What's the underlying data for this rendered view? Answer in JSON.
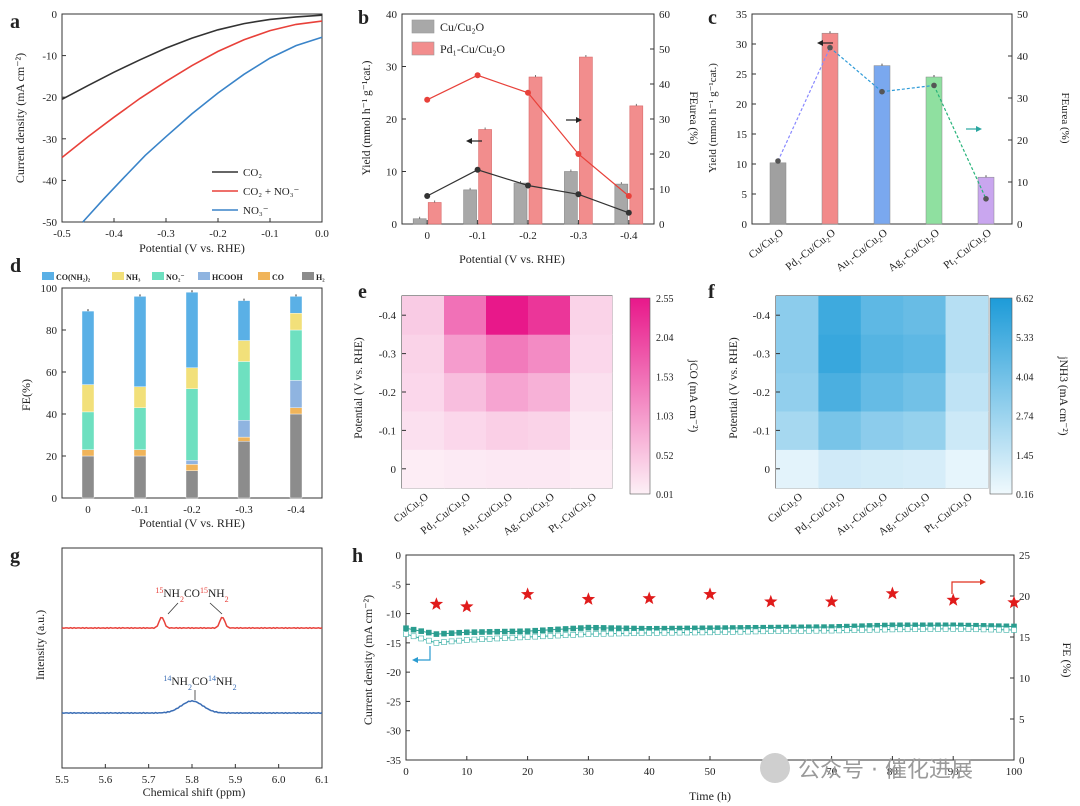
{
  "panels": {
    "a": {
      "label": "a",
      "chart_data": {
        "type": "line",
        "xlabel": "Potential (V vs. RHE)",
        "ylabel": "Current density (mA cm⁻²)",
        "xlim": [
          -0.5,
          0.0
        ],
        "ylim": [
          -50,
          0
        ],
        "xticks": [
          -0.5,
          -0.4,
          -0.3,
          -0.2,
          -0.1,
          0.0
        ],
        "xtick_labels": [
          "-0.5",
          "-0.4",
          "-0.3",
          "-0.2",
          "-0.1",
          "0.0"
        ],
        "yticks": [
          -50,
          -40,
          -30,
          -20,
          -10,
          0
        ],
        "series": [
          {
            "name": "CO₂",
            "color": "#333333",
            "x": [
              -0.5,
              -0.45,
              -0.4,
              -0.35,
              -0.3,
              -0.25,
              -0.2,
              -0.15,
              -0.1,
              -0.05,
              0.0
            ],
            "y": [
              -20.5,
              -17.2,
              -14.0,
              -11.0,
              -8.2,
              -5.8,
              -3.8,
              -2.3,
              -1.3,
              -0.7,
              -0.3
            ]
          },
          {
            "name": "CO₂ + NO₃⁻",
            "color": "#e8413a",
            "x": [
              -0.5,
              -0.45,
              -0.4,
              -0.35,
              -0.3,
              -0.25,
              -0.2,
              -0.15,
              -0.1,
              -0.05,
              0.0
            ],
            "y": [
              -34.5,
              -29.5,
              -24.8,
              -20.3,
              -16.2,
              -12.4,
              -9.0,
              -6.2,
              -4.0,
              -2.5,
              -1.7
            ]
          },
          {
            "name": "NO₃⁻",
            "color": "#3a84c9",
            "x": [
              -0.46,
              -0.42,
              -0.38,
              -0.34,
              -0.3,
              -0.25,
              -0.2,
              -0.15,
              -0.1,
              -0.05,
              0.0
            ],
            "y": [
              -50.0,
              -44.5,
              -39.2,
              -34.0,
              -29.5,
              -24.0,
              -19.0,
              -14.5,
              -10.6,
              -7.6,
              -5.6
            ]
          }
        ],
        "legend": "bottom-right"
      }
    },
    "b": {
      "label": "b",
      "chart_data": {
        "type": "bar",
        "xlabel": "Potential (V vs. RHE)",
        "ylabel": "Yield (mmol h⁻¹ g⁻¹cat.)",
        "y2label": "FEurea (%)",
        "categories": [
          "0",
          "-0.1",
          "-0.2",
          "-0.3",
          "-0.4"
        ],
        "ylim": [
          0,
          40
        ],
        "y2lim": [
          0,
          60
        ],
        "yticks": [
          0,
          10,
          20,
          30,
          40
        ],
        "y2ticks": [
          0,
          10,
          20,
          30,
          40,
          50,
          60
        ],
        "series": [
          {
            "name": "Cu/Cu₂O",
            "color": "#a8a8a8",
            "values": [
              1.0,
              6.5,
              7.8,
              10.0,
              7.6
            ]
          },
          {
            "name": "Pd₁-Cu/Cu₂O",
            "color": "#f28d8d",
            "values": [
              4.1,
              18.0,
              28.0,
              31.8,
              22.5
            ]
          }
        ],
        "line_series": [
          {
            "name": "Cu/Cu₂O FE",
            "color": "#333333",
            "axis": "right",
            "values": [
              8.0,
              15.5,
              11.0,
              8.5,
              3.2
            ]
          },
          {
            "name": "Pd₁-Cu/Cu₂O FE",
            "color": "#e8413a",
            "axis": "right",
            "values": [
              35.5,
              42.5,
              37.5,
              20.0,
              8.0
            ]
          }
        ],
        "legend": "top-left"
      }
    },
    "c": {
      "label": "c",
      "chart_data": {
        "type": "bar",
        "ylabel": "Yield (mmol h⁻¹ g⁻¹cat.)",
        "y2label": "FEurea (%)",
        "categories": [
          "Cu/Cu₂O",
          "Pd₁-Cu/Cu₂O",
          "Au₁-Cu/Cu₂O",
          "Ag₁-Cu/Cu₂O",
          "Pt₁-Cu/Cu₂O"
        ],
        "ylim": [
          0,
          35
        ],
        "y2lim": [
          0,
          50
        ],
        "yticks": [
          0,
          5,
          10,
          15,
          20,
          25,
          30,
          35
        ],
        "y2ticks": [
          0,
          10,
          20,
          30,
          40,
          50
        ],
        "values": [
          10.2,
          31.8,
          26.4,
          24.5,
          7.8
        ],
        "colors": [
          "#a0a0a0",
          "#f28a8a",
          "#7aa8ef",
          "#8fe0a0",
          "#c9a6ef"
        ],
        "fe_values": [
          15.0,
          42.0,
          31.5,
          33.0,
          6.0
        ]
      }
    },
    "d": {
      "label": "d",
      "chart_data": {
        "type": "bar",
        "stacked": true,
        "xlabel": "Potential (V vs. RHE)",
        "ylabel": "FE(%)",
        "categories": [
          "0",
          "-0.1",
          "-0.2",
          "-0.3",
          "-0.4"
        ],
        "ylim": [
          0,
          100
        ],
        "yticks": [
          0,
          20,
          40,
          60,
          80,
          100
        ],
        "series": [
          {
            "name": "H₂",
            "color": "#8c8c8c",
            "values": [
              20,
              20,
              13,
              27,
              40
            ]
          },
          {
            "name": "CO",
            "color": "#f0b45a",
            "values": [
              3,
              3,
              3,
              2,
              3
            ]
          },
          {
            "name": "HCOOH",
            "color": "#8fb4e0",
            "values": [
              0,
              0,
              2,
              8,
              13
            ]
          },
          {
            "name": "NO₂⁻",
            "color": "#6ee0c0",
            "values": [
              18,
              20,
              34,
              28,
              24
            ]
          },
          {
            "name": "NH₃",
            "color": "#f2e07a",
            "values": [
              13,
              10,
              10,
              10,
              8
            ]
          },
          {
            "name": "CO(NH₂)₂",
            "color": "#5ab0e6",
            "values": [
              35,
              43,
              36,
              19,
              8
            ]
          }
        ],
        "legend": "top"
      }
    },
    "e": {
      "label": "e",
      "chart_data": {
        "type": "heatmap",
        "ylabel": "Potential (V vs. RHE)",
        "colorbar_label": "jCO (mA cm⁻²)",
        "x": [
          "Cu/Cu₂O",
          "Pd₁-Cu/Cu₂O",
          "Au₁-Cu/Cu₂O",
          "Ag₁-Cu/Cu₂O",
          "Pt₁-Cu/Cu₂O"
        ],
        "y": [
          "0",
          "-0.1",
          "-0.2",
          "-0.3",
          "-0.4"
        ],
        "values": [
          [
            0.05,
            0.08,
            0.1,
            0.1,
            0.05
          ],
          [
            0.2,
            0.3,
            0.4,
            0.35,
            0.1
          ],
          [
            0.3,
            0.6,
            0.9,
            0.75,
            0.2
          ],
          [
            0.35,
            1.0,
            1.4,
            1.2,
            0.3
          ],
          [
            0.45,
            1.5,
            2.55,
            2.2,
            0.35
          ]
        ],
        "colorbar_ticks": [
          "0.01",
          "0.52",
          "1.03",
          "1.53",
          "2.04",
          "2.55"
        ],
        "vmin": 0.01,
        "vmax": 2.55
      }
    },
    "f": {
      "label": "f",
      "chart_data": {
        "type": "heatmap",
        "ylabel": "Potential (V vs. RHE)",
        "colorbar_label": "jNH3 (mA cm⁻²)",
        "x": [
          "Cu/Cu₂O",
          "Pd₁-Cu/Cu₂O",
          "Au₁-Cu/Cu₂O",
          "Ag₁-Cu/Cu₂O",
          "Pt₁-Cu/Cu₂O"
        ],
        "y": [
          "0",
          "-0.1",
          "-0.2",
          "-0.3",
          "-0.4"
        ],
        "values": [
          [
            0.5,
            1.1,
            1.0,
            0.9,
            0.4
          ],
          [
            2.4,
            3.8,
            3.2,
            2.9,
            1.2
          ],
          [
            3.0,
            5.2,
            4.4,
            4.0,
            1.6
          ],
          [
            3.2,
            5.8,
            4.9,
            4.6,
            1.9
          ],
          [
            3.2,
            5.6,
            4.6,
            4.3,
            1.9
          ]
        ],
        "colorbar_ticks": [
          "0.16",
          "1.45",
          "2.74",
          "4.04",
          "5.33",
          "6.62"
        ],
        "vmin": 0.16,
        "vmax": 6.62
      }
    },
    "g": {
      "label": "g",
      "chart_data": {
        "type": "line",
        "xlabel": "Chemical shift (ppm)",
        "ylabel": "Intensity (a.u.)",
        "xlim": [
          5.5,
          6.1
        ],
        "xticks": [
          "5.5",
          "5.6",
          "5.7",
          "5.8",
          "5.9",
          "6.0",
          "6.1"
        ],
        "series": [
          {
            "name": "15NH2CO15NH2",
            "color": "#e8413a",
            "peaks_ppm": [
              5.73,
              5.87
            ]
          },
          {
            "name": "14NH2CO14NH2",
            "color": "#3a6db5",
            "peaks_ppm": [
              5.8
            ]
          }
        ],
        "annotations": [
          {
            "text_pre": "15",
            "text_a": "NH",
            "sub_a": "2",
            "text_b": "CO",
            "sup_b": "15",
            "text_c": "NH",
            "sub_c": "2",
            "color": "#e8413a"
          },
          {
            "text_pre": "14",
            "text_a": "NH",
            "sub_a": "2",
            "text_b": "CO",
            "sup_b": "14",
            "text_c": "NH",
            "sub_c": "2",
            "color": "#3a6db5"
          }
        ]
      }
    },
    "h": {
      "label": "h",
      "chart_data": {
        "type": "line",
        "xlabel": "Time (h)",
        "ylabel": "Current density (mA cm⁻²)",
        "y2label": "FE (%)",
        "xlim": [
          0,
          100
        ],
        "ylim": [
          -35,
          0
        ],
        "y2lim": [
          0,
          25
        ],
        "xticks": [
          0,
          10,
          20,
          30,
          40,
          50,
          60,
          70,
          80,
          90,
          100
        ],
        "yticks": [
          0,
          -5,
          -10,
          -15,
          -20,
          -25,
          -30,
          -35
        ],
        "y2ticks": [
          0,
          5,
          10,
          15,
          20,
          25
        ],
        "fe_points": {
          "x": [
            5,
            10,
            20,
            30,
            40,
            50,
            60,
            70,
            80,
            90,
            100
          ],
          "y": [
            19.0,
            18.7,
            20.2,
            19.6,
            19.7,
            20.2,
            19.3,
            19.3,
            20.3,
            19.5,
            19.2
          ]
        },
        "current_upper": {
          "x": [
            0,
            5,
            10,
            20,
            30,
            40,
            50,
            60,
            70,
            80,
            90,
            100
          ],
          "y": [
            -12.5,
            -13.5,
            -13.2,
            -13.0,
            -12.4,
            -12.6,
            -12.5,
            -12.4,
            -12.3,
            -12.0,
            -12.0,
            -12.2
          ]
        },
        "current_lower": {
          "x": [
            0,
            5,
            10,
            20,
            30,
            40,
            50,
            60,
            70,
            80,
            90,
            100
          ],
          "y": [
            -13.5,
            -15.0,
            -14.5,
            -14.0,
            -13.5,
            -13.3,
            -13.2,
            -13.0,
            -12.9,
            -12.7,
            -12.6,
            -12.8
          ]
        }
      }
    }
  },
  "watermark": {
    "text": "公众号 · 催化进展"
  }
}
